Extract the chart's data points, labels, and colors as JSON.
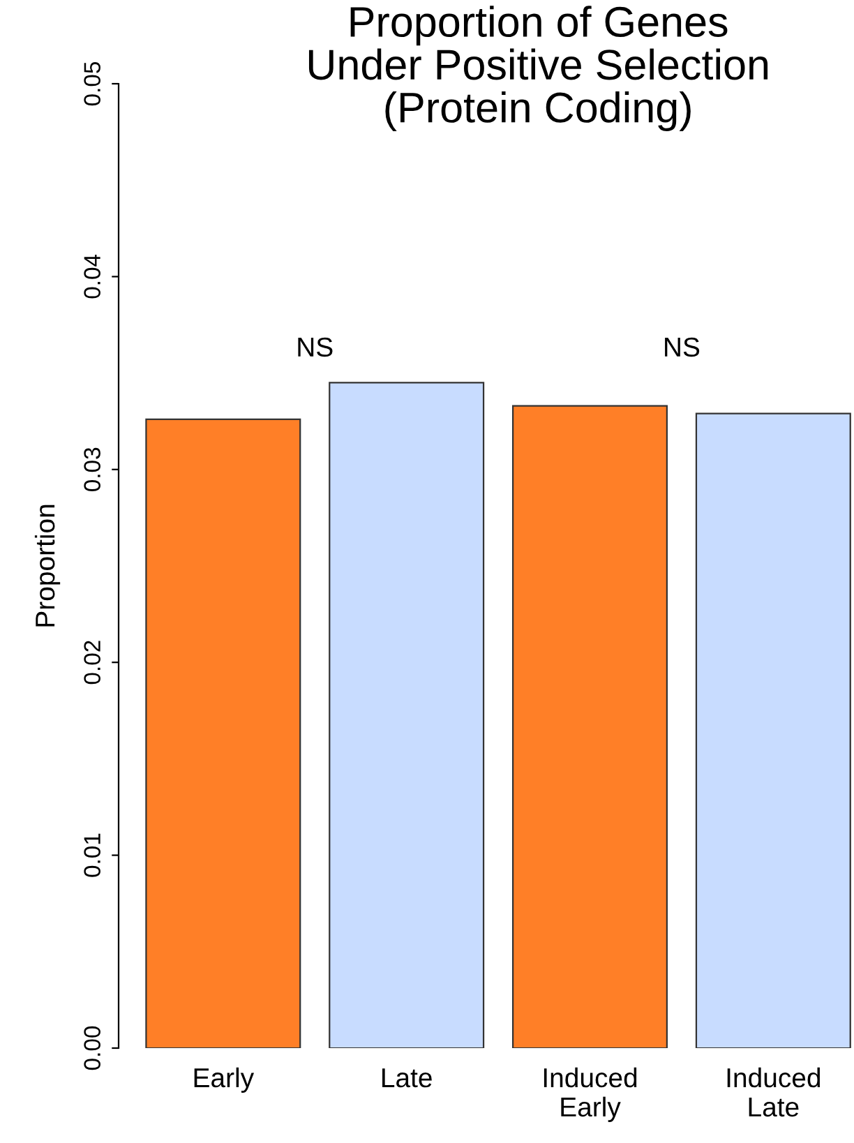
{
  "chart_data": {
    "type": "bar",
    "title": "Proportion of Genes\nUnder Positive Selection\n(Protein Coding)",
    "ylabel": "Proportion",
    "categories": [
      "Early",
      "Late",
      "Induced\nEarly",
      "Induced\nLate"
    ],
    "values": [
      0.0326,
      0.0345,
      0.0333,
      0.0329
    ],
    "colors": [
      "#ff7f27",
      "#c8dcff",
      "#ff7f27",
      "#c8dcff"
    ],
    "ylim": [
      0,
      0.05
    ],
    "yticks": [
      {
        "value": 0,
        "label": "0.00"
      },
      {
        "value": 0.01,
        "label": "0.01"
      },
      {
        "value": 0.02,
        "label": "0.02"
      },
      {
        "value": 0.03,
        "label": "0.03"
      },
      {
        "value": 0.04,
        "label": "0.04"
      },
      {
        "value": 0.05,
        "label": "0.05"
      }
    ],
    "annotations": [
      "NS",
      "NS"
    ],
    "grid": false,
    "legend": false
  }
}
